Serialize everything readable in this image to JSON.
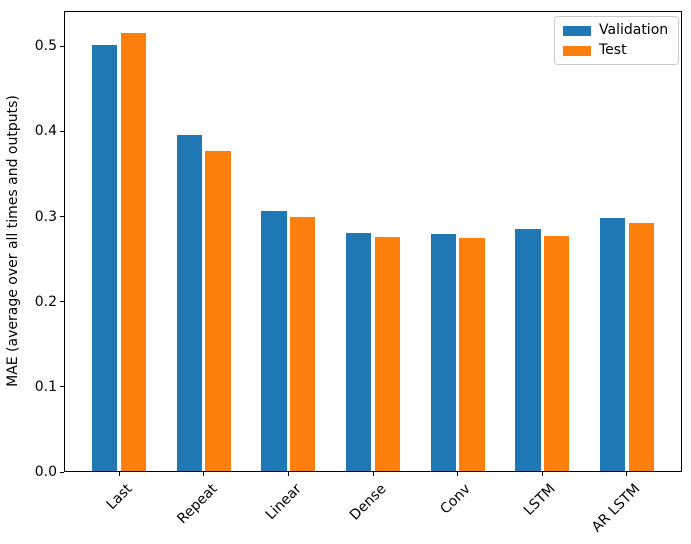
{
  "chart_data": {
    "type": "bar",
    "title": "",
    "categories": [
      "Last",
      "Repeat",
      "Linear",
      "Dense",
      "Conv",
      "LSTM",
      "AR LSTM"
    ],
    "series": [
      {
        "name": "Validation",
        "color": "#1f77b4",
        "values": [
          0.501,
          0.396,
          0.306,
          0.281,
          0.28,
          0.286,
          0.298
        ]
      },
      {
        "name": "Test",
        "color": "#ff7f0e",
        "values": [
          0.516,
          0.377,
          0.3,
          0.276,
          0.275,
          0.277,
          0.292
        ]
      }
    ],
    "xlabel": "",
    "ylabel": "MAE (average over all times and outputs)",
    "ylim": [
      0,
      0.5415
    ],
    "yticks": [
      0,
      0.1,
      0.2,
      0.3,
      0.4,
      0.5
    ],
    "ytick_labels": [
      "0.0",
      "0.1",
      "0.2",
      "0.3",
      "0.4",
      "0.5"
    ],
    "x_tick_rotation": 45,
    "grid": false,
    "legend": {
      "position": "upper right",
      "items": [
        "Validation",
        "Test"
      ]
    },
    "bar_width": 0.3,
    "bar_offsets": [
      -0.17,
      0.17
    ]
  }
}
